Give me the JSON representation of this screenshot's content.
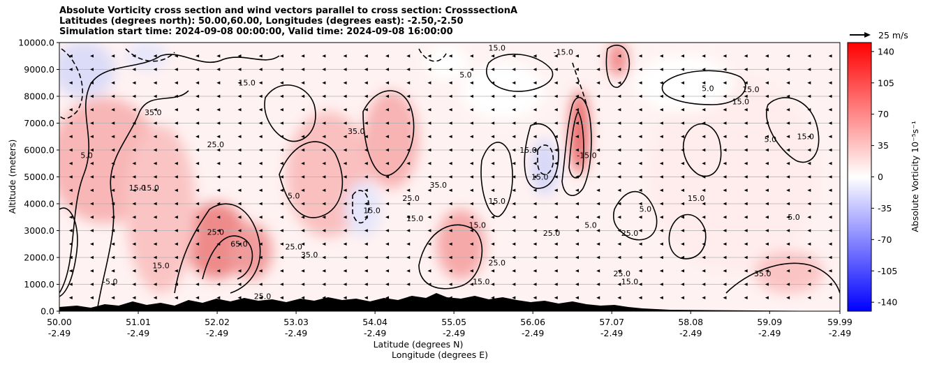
{
  "chart_data": {
    "type": "heatmap",
    "title": [
      "Absolute Vorticity cross section and wind vectors parallel to cross section: CrosssectionA",
      "Latitudes (degrees north): 50.00,60.00, Longitudes (degrees east): -2.50,-2.50",
      "Simulation start time: 2024-09-08 00:00:00, Valid time: 2024-09-08 16:00:00"
    ],
    "xlabel": "Latitude (degrees N)",
    "xlabel2": "Longitude (degrees E)",
    "ylabel": "Altitude (meters)",
    "colorbar_label": "Absolute Vorticity 10⁻⁵s⁻¹",
    "xlim": [
      50.0,
      59.99
    ],
    "ylim": [
      0,
      10000
    ],
    "x_ticks": [
      {
        "lat": "50.00",
        "lon": "-2.49",
        "value": 50.0
      },
      {
        "lat": "51.01",
        "lon": "-2.49",
        "value": 51.01
      },
      {
        "lat": "52.02",
        "lon": "-2.49",
        "value": 52.02
      },
      {
        "lat": "53.03",
        "lon": "-2.49",
        "value": 53.03
      },
      {
        "lat": "54.04",
        "lon": "-2.49",
        "value": 54.04
      },
      {
        "lat": "55.05",
        "lon": "-2.49",
        "value": 55.05
      },
      {
        "lat": "56.06",
        "lon": "-2.49",
        "value": 56.06
      },
      {
        "lat": "57.07",
        "lon": "-2.49",
        "value": 57.07
      },
      {
        "lat": "58.08",
        "lon": "-2.49",
        "value": 58.08
      },
      {
        "lat": "59.09",
        "lon": "-2.49",
        "value": 59.09
      },
      {
        "lat": "59.99",
        "lon": "-2.49",
        "value": 59.99
      }
    ],
    "y_ticks": [
      {
        "label": "0.0",
        "value": 0
      },
      {
        "label": "1000.0",
        "value": 1000
      },
      {
        "label": "2000.0",
        "value": 2000
      },
      {
        "label": "3000.0",
        "value": 3000
      },
      {
        "label": "4000.0",
        "value": 4000
      },
      {
        "label": "5000.0",
        "value": 5000
      },
      {
        "label": "6000.0",
        "value": 6000
      },
      {
        "label": "7000.0",
        "value": 7000
      },
      {
        "label": "8000.0",
        "value": 8000
      },
      {
        "label": "9000.0",
        "value": 9000
      },
      {
        "label": "10000.0",
        "value": 10000
      }
    ],
    "colorbar": {
      "range": [
        -150,
        150
      ],
      "ticks": [
        140,
        105,
        70,
        35,
        0,
        -35,
        -70,
        -105,
        -140
      ],
      "colormap": "bwr",
      "low_color": "#0000ff",
      "mid_color": "#ffffff",
      "high_color": "#ff0000"
    },
    "quiver_key": {
      "label": "25 m/s",
      "value": 25
    },
    "grid": "horizontal",
    "contour_labels": [
      {
        "text": "15.0",
        "lat": 55.6,
        "alt": 9700
      },
      {
        "text": "-15.0",
        "lat": 56.45,
        "alt": 9550
      },
      {
        "text": "15.0",
        "lat": 58.85,
        "alt": 8150
      },
      {
        "text": "15.0",
        "lat": 58.72,
        "alt": 7700
      },
      {
        "text": "35.0",
        "lat": 53.8,
        "alt": 6600
      },
      {
        "text": "15.0",
        "lat": 56.0,
        "alt": 5900
      },
      {
        "text": "15.0",
        "lat": 56.15,
        "alt": 4900
      },
      {
        "text": "-15.0",
        "lat": 56.75,
        "alt": 5700
      },
      {
        "text": "15.0",
        "lat": 51.0,
        "alt": 4500
      },
      {
        "text": "-15.0",
        "lat": 51.15,
        "alt": 4500
      },
      {
        "text": "35.0",
        "lat": 54.85,
        "alt": 4600
      },
      {
        "text": "25.0",
        "lat": 54.5,
        "alt": 4100
      },
      {
        "text": "15.0",
        "lat": 55.6,
        "alt": 4000
      },
      {
        "text": "15.0",
        "lat": 54.0,
        "alt": 3650
      },
      {
        "text": "15.0",
        "lat": 54.55,
        "alt": 3350
      },
      {
        "text": "15.0",
        "lat": 55.35,
        "alt": 3100
      },
      {
        "text": "25.0",
        "lat": 56.3,
        "alt": 2800
      },
      {
        "text": "25.0",
        "lat": 57.3,
        "alt": 2800
      },
      {
        "text": "25.0",
        "lat": 52.0,
        "alt": 2850
      },
      {
        "text": "65.0",
        "lat": 52.3,
        "alt": 2400
      },
      {
        "text": "25.0",
        "lat": 53.0,
        "alt": 2300
      },
      {
        "text": "35.0",
        "lat": 53.2,
        "alt": 2000
      },
      {
        "text": "25.0",
        "lat": 55.6,
        "alt": 1700
      },
      {
        "text": "15.0",
        "lat": 51.3,
        "alt": 1600
      },
      {
        "text": "-5.0",
        "lat": 50.65,
        "alt": 1000
      },
      {
        "text": "25.0",
        "lat": 52.6,
        "alt": 450
      },
      {
        "text": "15.0",
        "lat": 55.4,
        "alt": 1000
      },
      {
        "text": "25.0",
        "lat": 57.2,
        "alt": 1300
      },
      {
        "text": "15.0",
        "lat": 57.3,
        "alt": 1000
      },
      {
        "text": "35.0",
        "lat": 59.0,
        "alt": 1300
      },
      {
        "text": "5.0",
        "lat": 50.35,
        "alt": 5700
      },
      {
        "text": "5.0",
        "lat": 53.0,
        "alt": 4200
      },
      {
        "text": "5.0",
        "lat": 56.8,
        "alt": 3100
      },
      {
        "text": "5.0",
        "lat": 59.4,
        "alt": 3400
      },
      {
        "text": "5.0",
        "lat": 58.3,
        "alt": 8200
      },
      {
        "text": "5.0",
        "lat": 55.2,
        "alt": 8700
      },
      {
        "text": "15.0",
        "lat": 52.4,
        "alt": 8400
      },
      {
        "text": "25.0",
        "lat": 52.0,
        "alt": 6100
      },
      {
        "text": "35.0",
        "lat": 51.2,
        "alt": 7300
      },
      {
        "text": "5.0",
        "lat": 57.5,
        "alt": 3700
      },
      {
        "text": "15.0",
        "lat": 58.15,
        "alt": 4100
      },
      {
        "text": "5.0",
        "lat": 59.1,
        "alt": 6300
      },
      {
        "text": "15.0",
        "lat": 59.55,
        "alt": 6400
      }
    ]
  }
}
